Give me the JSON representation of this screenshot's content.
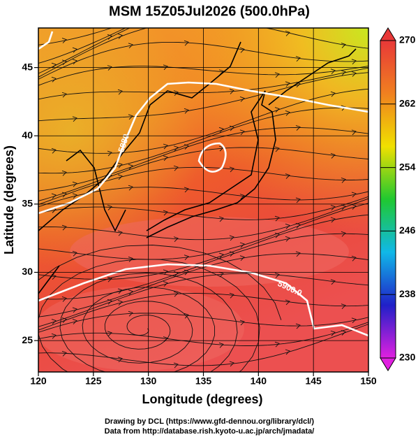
{
  "chart_data": {
    "type": "streamline-map",
    "title": "MSM 15Z05Jul2026 (500.0hPa)",
    "x_label": "Longitude (degrees)",
    "y_label": "Latitude  (degrees)",
    "xlim": [
      120,
      150
    ],
    "xticks": [
      120,
      125,
      130,
      135,
      140,
      145,
      150
    ],
    "ylim": [
      22.7,
      47.9
    ],
    "yticks": [
      25,
      30,
      35,
      40,
      45
    ],
    "grid": true,
    "colorbar": {
      "lim": [
        230,
        270
      ],
      "ticks": [
        230,
        238,
        246,
        254,
        262,
        270
      ],
      "colors": [
        "#e020e0",
        "#2020c8",
        "#10b8e8",
        "#20c830",
        "#f0e000",
        "#f08020",
        "#e83838"
      ]
    },
    "contour_labels": [
      "5880",
      "5900.0"
    ],
    "credits": [
      "Drawing by DCL (https://www.gfd-dennou.org/library/dcl/)",
      "Data from http://database.rish.kyoto-u.ac.jp/arch/jmadata/"
    ]
  }
}
